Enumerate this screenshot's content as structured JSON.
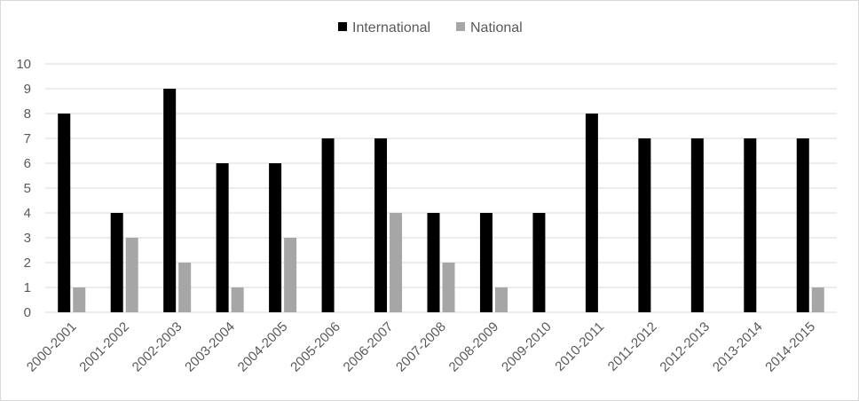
{
  "chart_data": {
    "type": "bar",
    "categories": [
      "2000-2001",
      "2001-2002",
      "2002-2003",
      "2003-2004",
      "2004-2005",
      "2005-2006",
      "2006-2007",
      "2007-2008",
      "2008-2009",
      "2009-2010",
      "2010-2011",
      "2011-2012",
      "2012-2013",
      "2013-2014",
      "2014-2015"
    ],
    "series": [
      {
        "name": "International",
        "color": "#000000",
        "values": [
          8,
          4,
          9,
          6,
          6,
          7,
          7,
          4,
          4,
          4,
          8,
          7,
          7,
          7,
          7
        ]
      },
      {
        "name": "National",
        "color": "#a6a6a6",
        "values": [
          1,
          3,
          2,
          1,
          3,
          0,
          4,
          2,
          1,
          0,
          0,
          0,
          0,
          0,
          1
        ]
      }
    ],
    "yticks": [
      "0",
      "1",
      "2",
      "3",
      "4",
      "5",
      "6",
      "7",
      "8",
      "9",
      "10"
    ],
    "ylim": [
      0,
      10
    ],
    "grid": true,
    "legend_position": "top-center"
  }
}
